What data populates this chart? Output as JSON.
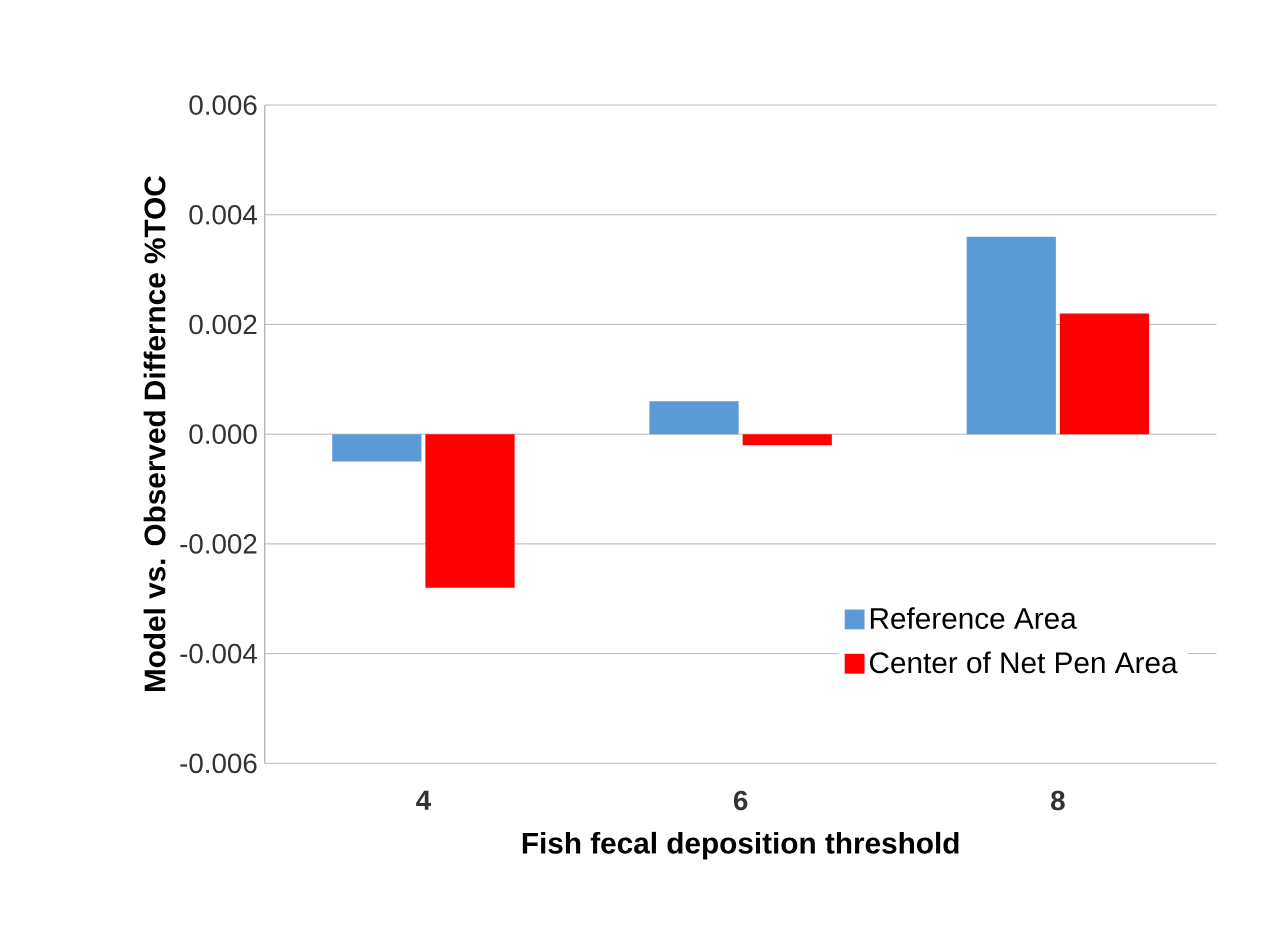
{
  "chart_data": {
    "type": "bar",
    "xlabel": "Fish fecal deposition threshold",
    "ylabel": "Model vs. Observed Differnce %TOC",
    "categories": [
      "4",
      "6",
      "8"
    ],
    "series": [
      {
        "name": "Reference Area",
        "color": "#5b9bd5",
        "values": [
          -0.0005,
          0.0006,
          0.0036
        ]
      },
      {
        "name": "Center of Net Pen Area",
        "color": "#ff0000",
        "values": [
          -0.0028,
          -0.0002,
          0.0022
        ]
      }
    ],
    "ylim": [
      -0.006,
      0.006
    ],
    "yticks": [
      {
        "value": -0.006,
        "label": "-0.006"
      },
      {
        "value": -0.004,
        "label": "-0.004"
      },
      {
        "value": -0.002,
        "label": "-0.002"
      },
      {
        "value": 0,
        "label": "0.000"
      },
      {
        "value": 0.002,
        "label": "0.002"
      },
      {
        "value": 0.004,
        "label": "0.004"
      },
      {
        "value": 0.006,
        "label": "0.006"
      }
    ],
    "grid": "y",
    "legend": "bottom right"
  }
}
